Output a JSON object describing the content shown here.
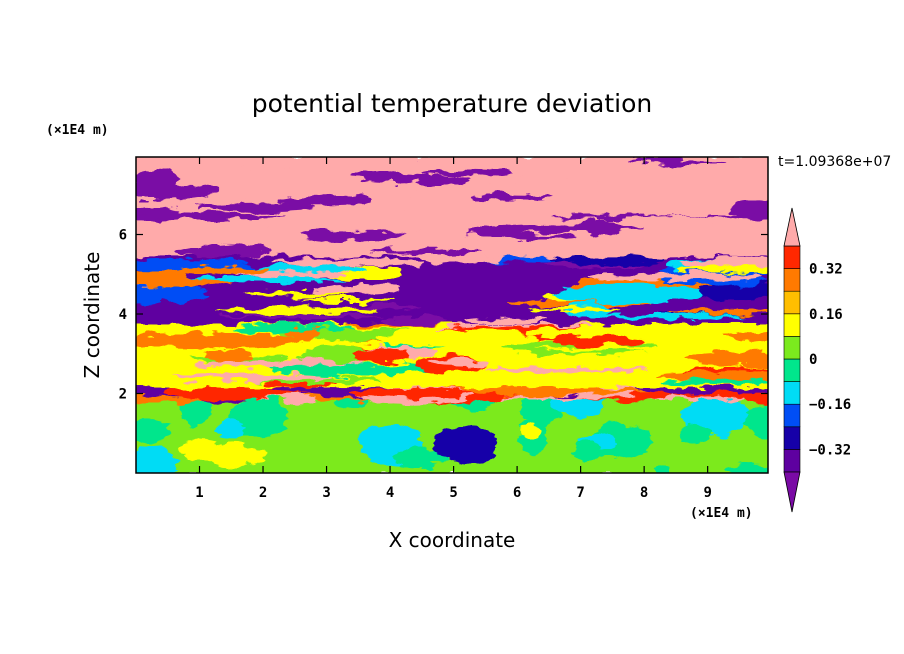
{
  "chart_data": {
    "type": "heatmap",
    "title": "potential temperature deviation",
    "xlabel": "X coordinate",
    "ylabel": "Z coordinate",
    "x_scale_label": "(×1E4 m)",
    "z_scale_label": "(×1E4 m)",
    "time_label": "t=1.09368e+07",
    "xlim": [
      0,
      9.95
    ],
    "zlim": [
      0,
      7.95
    ],
    "x_ticks": [
      "1",
      "2",
      "3",
      "4",
      "5",
      "6",
      "7",
      "8",
      "9"
    ],
    "z_ticks": [
      "2",
      "4",
      "6"
    ],
    "x_tick_values": [
      1,
      2,
      3,
      4,
      5,
      6,
      7,
      8,
      9
    ],
    "z_tick_values": [
      2,
      4,
      6
    ],
    "colorbar": {
      "levels": [
        -0.4,
        -0.32,
        -0.24,
        -0.16,
        -0.08,
        0,
        0.08,
        0.16,
        0.24,
        0.32,
        0.4
      ],
      "colors": [
        "#5e00a0",
        "#1600a8",
        "#004ef5",
        "#00dcf5",
        "#00e68c",
        "#7bea1e",
        "#ffff00",
        "#ffbe00",
        "#ff7a00",
        "#ff2800",
        "#ffaaaa"
      ],
      "over_color": "#ffaaaa",
      "under_color": "#7a0aa5",
      "tick_labels": [
        "0.32",
        "0.16",
        "0",
        "−0.16",
        "−0.32"
      ],
      "tick_values": [
        0.32,
        0.16,
        0,
        -0.16,
        -0.32
      ]
    },
    "bands": [
      {
        "z": [
          0,
          1.9
        ],
        "dominant": 0.0,
        "description": "lower layer near zero with weak cold and warm eddies"
      },
      {
        "z": [
          1.9,
          2.2
        ],
        "dominant": 0.4,
        "description": "warm anomaly layer"
      },
      {
        "z": [
          2.2,
          3.8
        ],
        "dominant": 0.12,
        "description": "warm turbulent layer"
      },
      {
        "z": [
          3.8,
          5.5
        ],
        "dominant": -0.4,
        "description": "alternating cold and warm filaments"
      },
      {
        "z": [
          5.5,
          7.95
        ],
        "dominant": 0.4,
        "description": "alternating warm and cold horizontal layers"
      }
    ]
  }
}
